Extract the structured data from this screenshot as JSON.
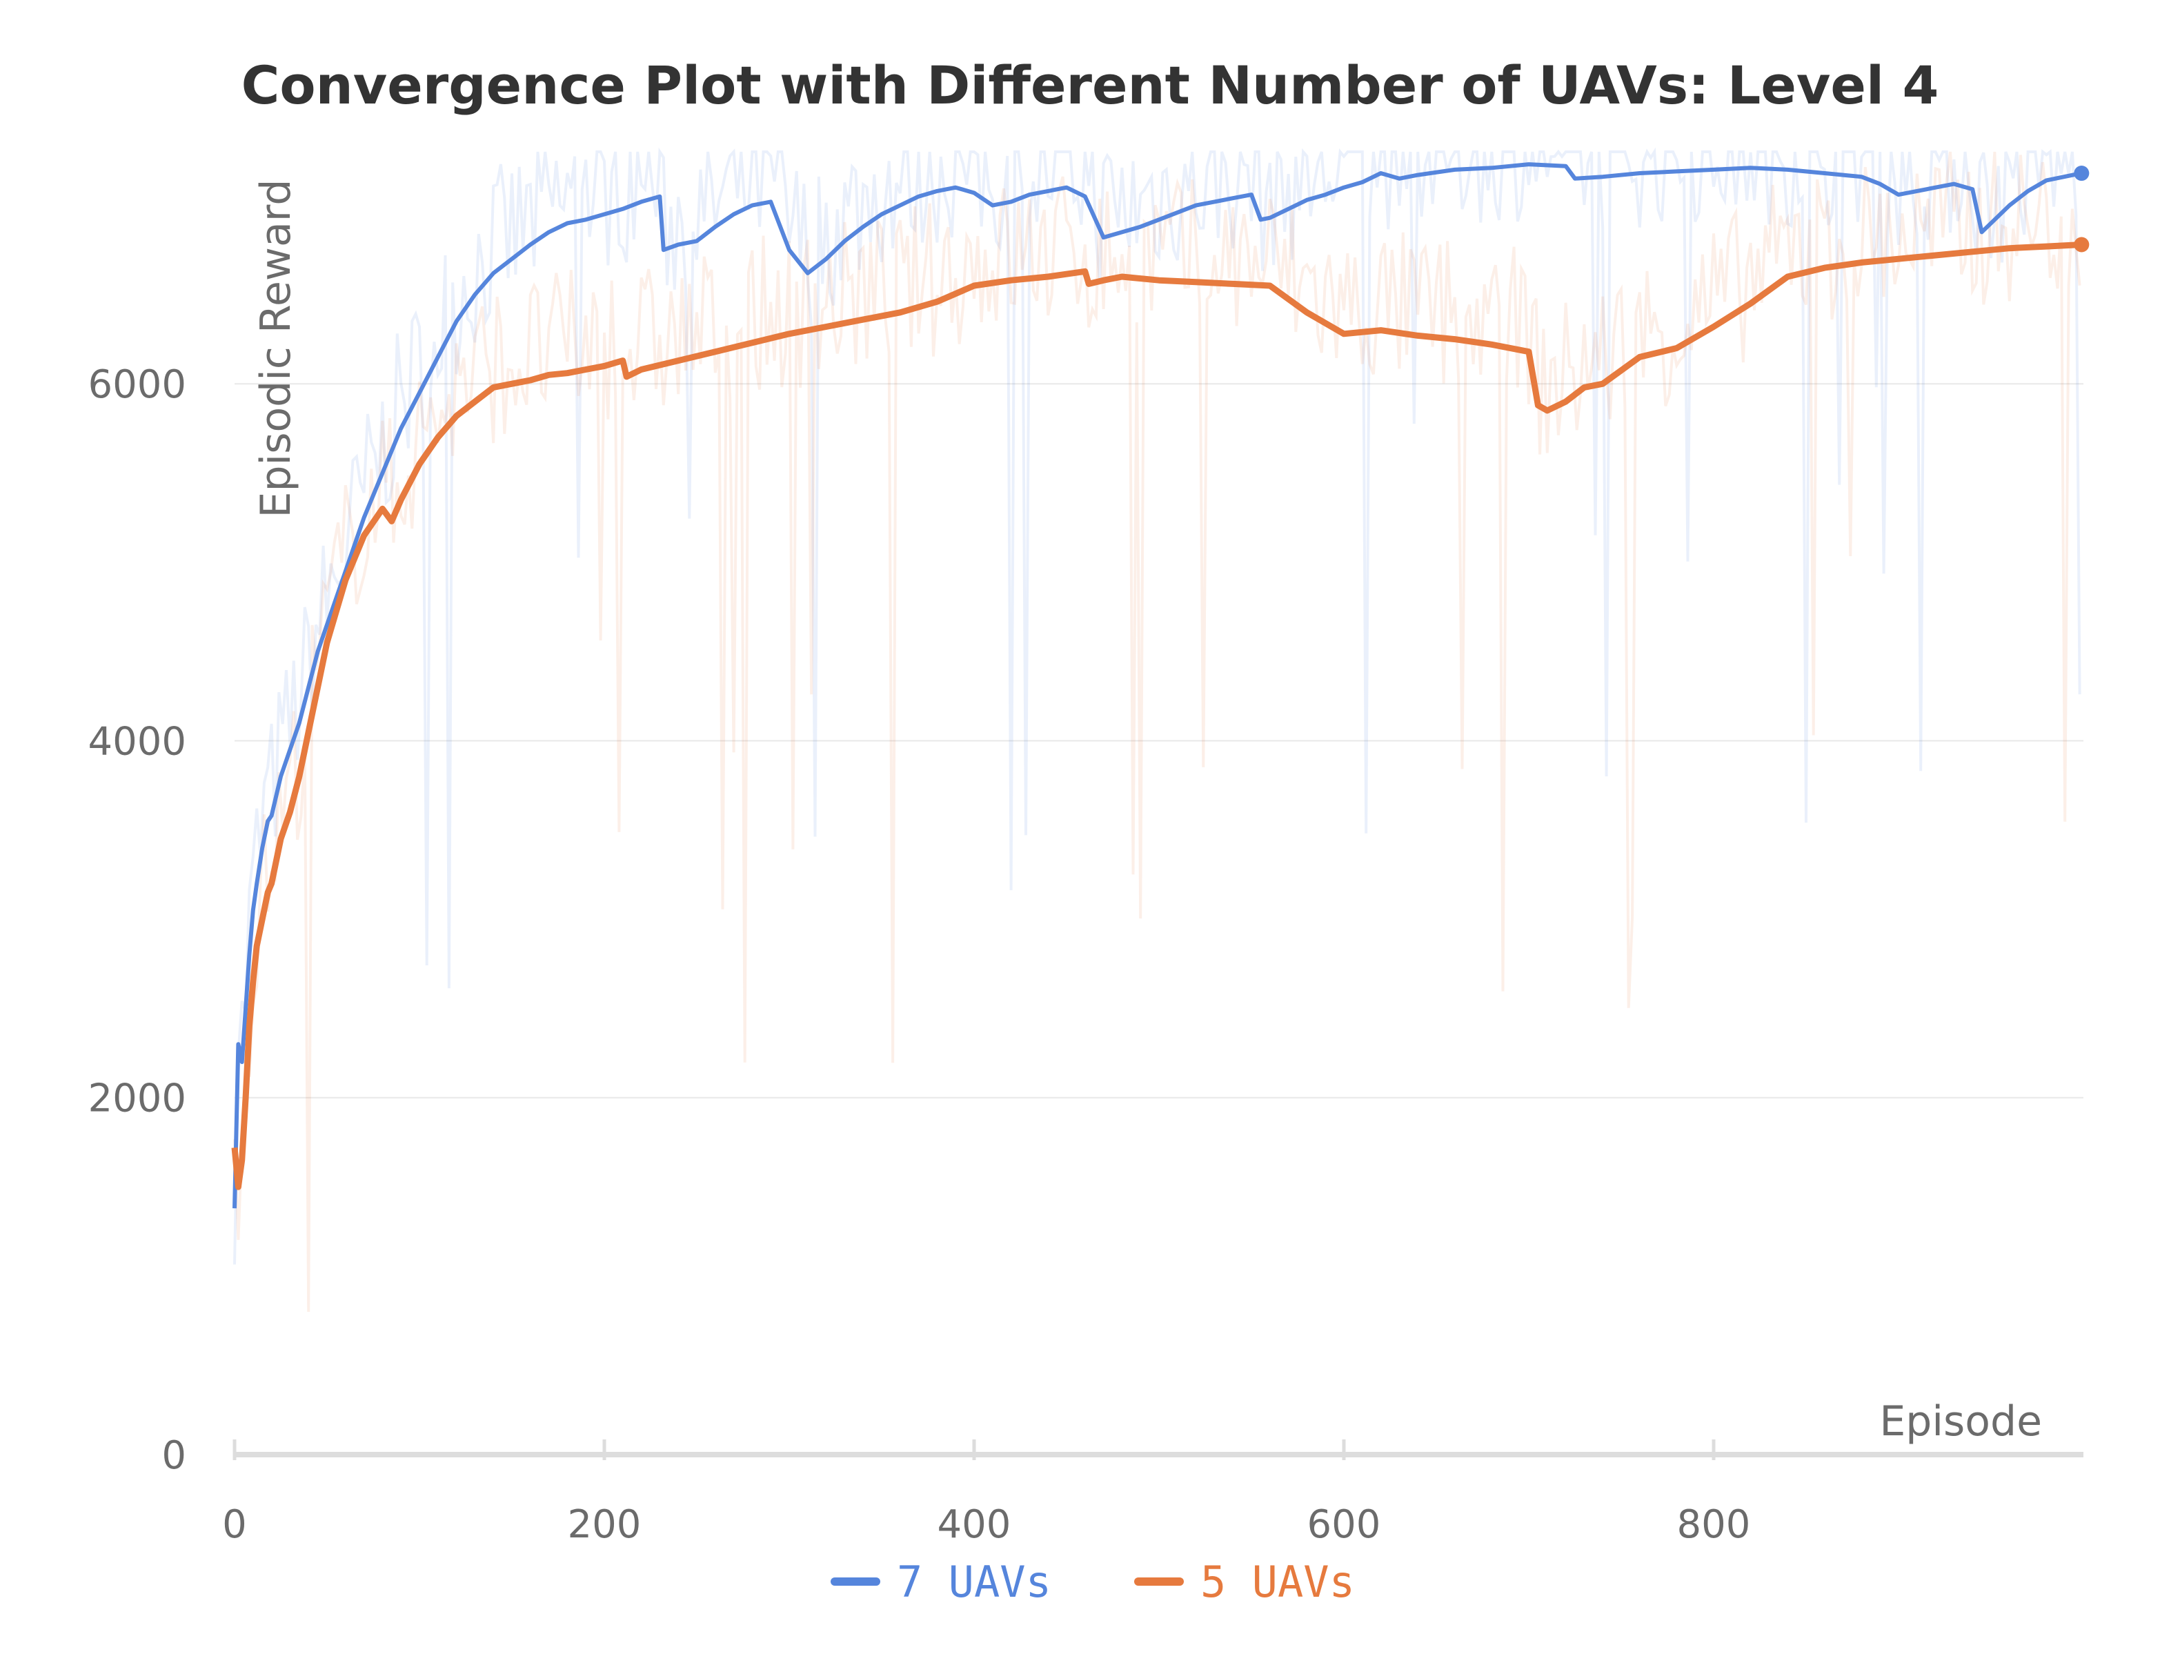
{
  "chart_data": {
    "type": "line",
    "title": "Convergence Plot with Different Number of UAVs: Level 4",
    "xlabel": "Episode",
    "ylabel": "Episodic Reward",
    "xlim": [
      0,
      1000
    ],
    "ylim": [
      0,
      7300
    ],
    "xticks": [
      0,
      200,
      400,
      600,
      800
    ],
    "yticks": [
      0,
      2000,
      4000,
      6000
    ],
    "grid": true,
    "legend_position": "bottom-center",
    "colors": {
      "7_uavs": "#5585dc",
      "5_uavs": "#e67a3e",
      "grid": "#e8e8e8",
      "axis": "#dddddd"
    },
    "series": [
      {
        "name": "7 UAVs",
        "color": "#5585dc",
        "x": [
          0,
          2,
          4,
          6,
          8,
          10,
          12,
          15,
          18,
          20,
          25,
          30,
          35,
          40,
          45,
          50,
          60,
          70,
          80,
          90,
          100,
          110,
          120,
          130,
          140,
          150,
          160,
          170,
          180,
          190,
          200,
          210,
          220,
          230,
          232,
          240,
          250,
          260,
          270,
          280,
          290,
          300,
          310,
          320,
          330,
          340,
          350,
          360,
          370,
          380,
          390,
          400,
          410,
          420,
          430,
          440,
          450,
          460,
          470,
          480,
          490,
          500,
          510,
          520,
          530,
          540,
          550,
          555,
          560,
          570,
          580,
          590,
          600,
          610,
          620,
          630,
          640,
          660,
          680,
          700,
          720,
          725,
          740,
          760,
          780,
          800,
          820,
          840,
          860,
          870,
          880,
          890,
          900,
          910,
          920,
          930,
          940,
          945,
          950,
          960,
          970,
          980,
          999
        ],
        "values": [
          1380,
          2300,
          2200,
          2500,
          2800,
          3050,
          3200,
          3400,
          3550,
          3580,
          3800,
          3950,
          4100,
          4300,
          4500,
          4650,
          4950,
          5250,
          5500,
          5750,
          5950,
          6150,
          6350,
          6500,
          6620,
          6700,
          6780,
          6850,
          6900,
          6920,
          6950,
          6980,
          7020,
          7050,
          6750,
          6780,
          6800,
          6880,
          6950,
          7000,
          7020,
          6750,
          6620,
          6700,
          6800,
          6880,
          6950,
          7000,
          7050,
          7080,
          7100,
          7070,
          7000,
          7020,
          7060,
          7080,
          7100,
          7050,
          6820,
          6850,
          6880,
          6920,
          6960,
          7000,
          7020,
          7040,
          7060,
          6920,
          6930,
          6980,
          7030,
          7060,
          7100,
          7130,
          7180,
          7150,
          7170,
          7200,
          7210,
          7230,
          7220,
          7150,
          7160,
          7180,
          7190,
          7200,
          7210,
          7200,
          7180,
          7170,
          7160,
          7120,
          7060,
          7080,
          7100,
          7120,
          7090,
          6850,
          6900,
          7000,
          7080,
          7140,
          7180
        ]
      },
      {
        "name": "5 UAVs",
        "color": "#e67a3e",
        "x": [
          0,
          2,
          4,
          6,
          8,
          10,
          12,
          15,
          18,
          20,
          25,
          30,
          35,
          40,
          45,
          50,
          60,
          70,
          80,
          85,
          90,
          100,
          110,
          120,
          130,
          140,
          150,
          160,
          170,
          180,
          190,
          200,
          210,
          212,
          220,
          240,
          260,
          280,
          300,
          320,
          340,
          360,
          380,
          400,
          420,
          440,
          460,
          462,
          470,
          480,
          500,
          520,
          540,
          560,
          580,
          600,
          620,
          640,
          660,
          680,
          700,
          705,
          710,
          720,
          730,
          740,
          760,
          780,
          800,
          820,
          840,
          860,
          880,
          900,
          920,
          940,
          960,
          980,
          999
        ],
        "values": [
          1720,
          1500,
          1650,
          2000,
          2400,
          2650,
          2850,
          3000,
          3150,
          3200,
          3450,
          3600,
          3800,
          4050,
          4300,
          4550,
          4900,
          5150,
          5300,
          5230,
          5350,
          5550,
          5700,
          5820,
          5900,
          5980,
          6000,
          6020,
          6050,
          6060,
          6080,
          6100,
          6130,
          6040,
          6080,
          6130,
          6180,
          6230,
          6280,
          6320,
          6360,
          6400,
          6460,
          6550,
          6580,
          6600,
          6630,
          6560,
          6580,
          6600,
          6580,
          6570,
          6560,
          6550,
          6400,
          6280,
          6300,
          6270,
          6250,
          6220,
          6180,
          5880,
          5850,
          5900,
          5980,
          6000,
          6150,
          6200,
          6320,
          6450,
          6600,
          6650,
          6680,
          6700,
          6720,
          6740,
          6760,
          6770,
          6780
        ]
      }
    ]
  }
}
